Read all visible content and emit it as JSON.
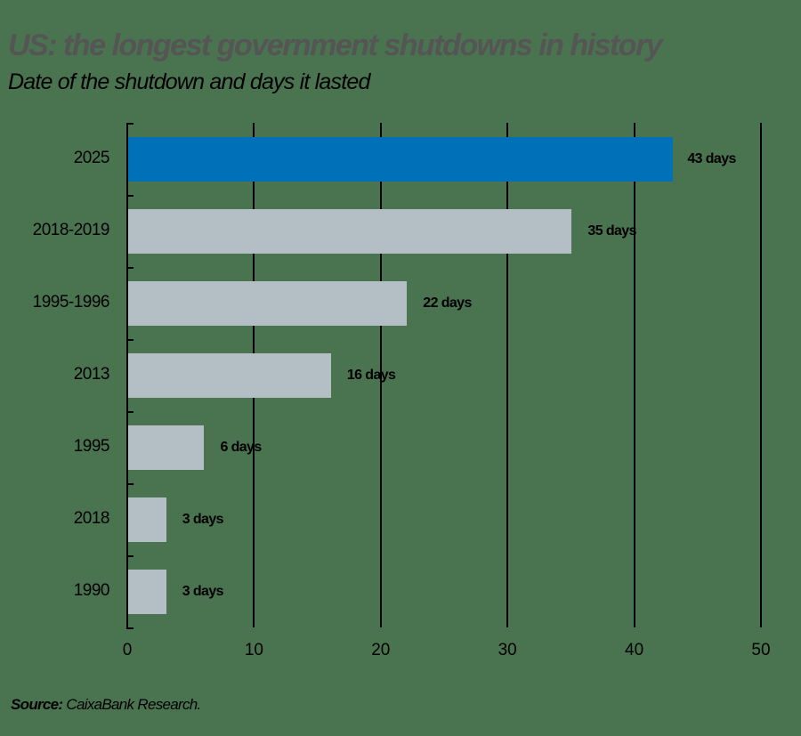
{
  "header": {
    "title": "US: the longest government shutdowns in history",
    "subtitle": "Date of the shutdown and days it lasted"
  },
  "footer": {
    "source_label": "Source:",
    "source_text": " CaixaBank Research."
  },
  "colors": {
    "highlight": "#0070b8",
    "default_bar": "#b3bfc5",
    "background": "#4a7350"
  },
  "chart_data": {
    "type": "bar",
    "orientation": "horizontal",
    "title": "US: the longest government shutdowns in history",
    "subtitle": "Date of the shutdown and days it lasted",
    "categories": [
      "2025",
      "2018-2019",
      "1995-1996",
      "2013",
      "1995",
      "2018",
      "1990"
    ],
    "values": [
      43,
      35,
      22,
      16,
      6,
      3,
      3
    ],
    "data_labels": [
      "43 days",
      "35 days",
      "22 days",
      "16 days",
      "6 days",
      "3 days",
      "3 days"
    ],
    "highlighted_category": "2025",
    "xlabel": "",
    "ylabel": "",
    "xlim": [
      0,
      50
    ],
    "xticks": [
      "0",
      "10",
      "20",
      "30",
      "40",
      "50"
    ],
    "grid": "vertical",
    "legend": "none",
    "source": "Source: CaixaBank Research."
  }
}
